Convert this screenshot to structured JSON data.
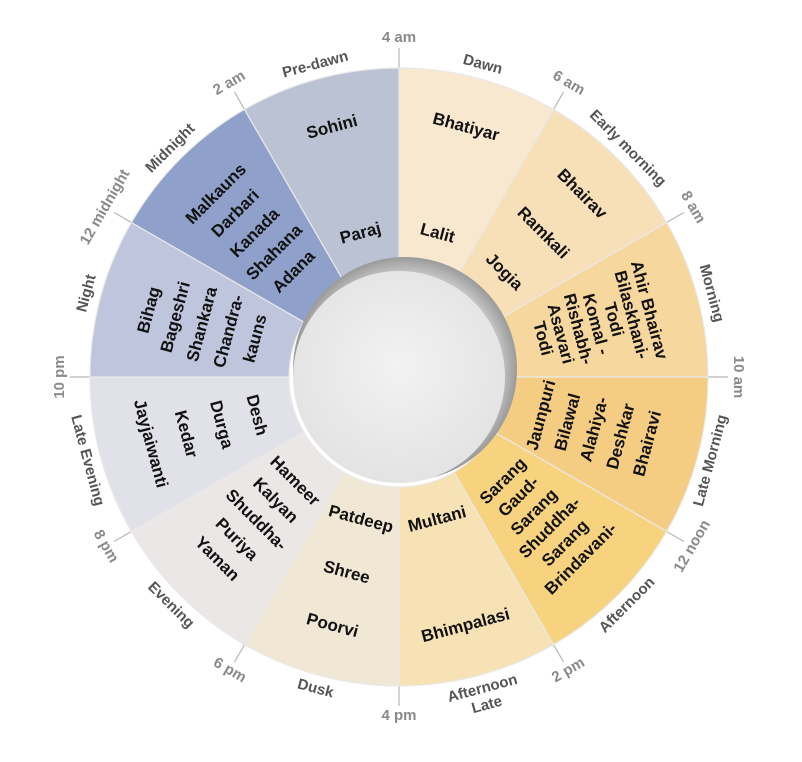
{
  "hours": [
    "4 am",
    "6 am",
    "8 am",
    "10 am",
    "12 noon",
    "2 pm",
    "4 pm",
    "6 pm",
    "8 pm",
    "10 pm",
    "12 midnight",
    "2 am"
  ],
  "periods": [
    {
      "name": "Dawn",
      "start": "4 am",
      "end": "6 am",
      "lines": [
        "Dawn"
      ],
      "ragas": [
        "Bhatiyar",
        "Lalit"
      ],
      "color": "#f8e8cf"
    },
    {
      "name": "Early morning",
      "start": "6 am",
      "end": "8 am",
      "lines": [
        "Early morning"
      ],
      "ragas": [
        "Bhairav",
        "Ramkali",
        "Jogia"
      ],
      "color": "#f7dfb8"
    },
    {
      "name": "Morning",
      "start": "8 am",
      "end": "10 am",
      "lines": [
        "Morning"
      ],
      "ragas": [
        "Ahir Bhairav",
        "Bilaskhani-",
        "Todi",
        "Komal -",
        "Rishabh-",
        "Asavari",
        "Todi"
      ],
      "color": "#f6d79e"
    },
    {
      "name": "Late Morning",
      "start": "10 am",
      "end": "12 noon",
      "lines": [
        "Late Morning"
      ],
      "ragas": [
        "Bhairavi",
        "Deshkar",
        "Alahiya-",
        "Bilawal",
        "Jaunpuri"
      ],
      "color": "#f4cd82"
    },
    {
      "name": "Afternoon",
      "start": "12 noon",
      "end": "2 pm",
      "lines": [
        "Afternoon"
      ],
      "ragas": [
        "Brindavani-",
        "Sarang",
        "Shuddha-",
        "Sarang",
        "Gaud-",
        "Sarang"
      ],
      "color": "#f7d37f"
    },
    {
      "name": "Late Afternoon",
      "start": "2 pm",
      "end": "4 pm",
      "lines": [
        "Late",
        "Afternoon"
      ],
      "ragas": [
        "Bhimpalasi",
        "Multani"
      ],
      "color": "#f6e2b4"
    },
    {
      "name": "Dusk",
      "start": "4 pm",
      "end": "6 pm",
      "lines": [
        "Dusk"
      ],
      "ragas": [
        "Poorvi",
        "Shree",
        "Patdeep"
      ],
      "color": "#f1e7d5"
    },
    {
      "name": "Evening",
      "start": "6 pm",
      "end": "8 pm",
      "lines": [
        "Evening"
      ],
      "ragas": [
        "Yaman",
        "Puriya",
        "Shuddha-",
        "Kalyan",
        "Hameer"
      ],
      "color": "#ebe7e6"
    },
    {
      "name": "Late Evening",
      "start": "8 pm",
      "end": "10 pm",
      "lines": [
        "Late Evening"
      ],
      "ragas": [
        "Jayjaiwanti",
        "Kedar",
        "Durga",
        "Desh"
      ],
      "color": "#e1e1ea"
    },
    {
      "name": "Night",
      "start": "10 pm",
      "end": "12 midnight",
      "lines": [
        "Night"
      ],
      "ragas": [
        "Bihag",
        "Bageshri",
        "Shankara",
        "Chandra-",
        "kauns"
      ],
      "color": "#bfc5dc"
    },
    {
      "name": "Midnight",
      "start": "12 midnight",
      "end": "2 am",
      "lines": [
        "Midnight"
      ],
      "ragas": [
        "Malkauns",
        "Darbari",
        "Kanada",
        "Shahana",
        "Adana"
      ],
      "color": "#8fa0ca"
    },
    {
      "name": "Pre-dawn",
      "start": "2 am",
      "end": "4 am",
      "lines": [
        "Pre-dawn"
      ],
      "ragas": [
        "Sohini",
        "Paraj"
      ],
      "color": "#bac2d4"
    }
  ]
}
